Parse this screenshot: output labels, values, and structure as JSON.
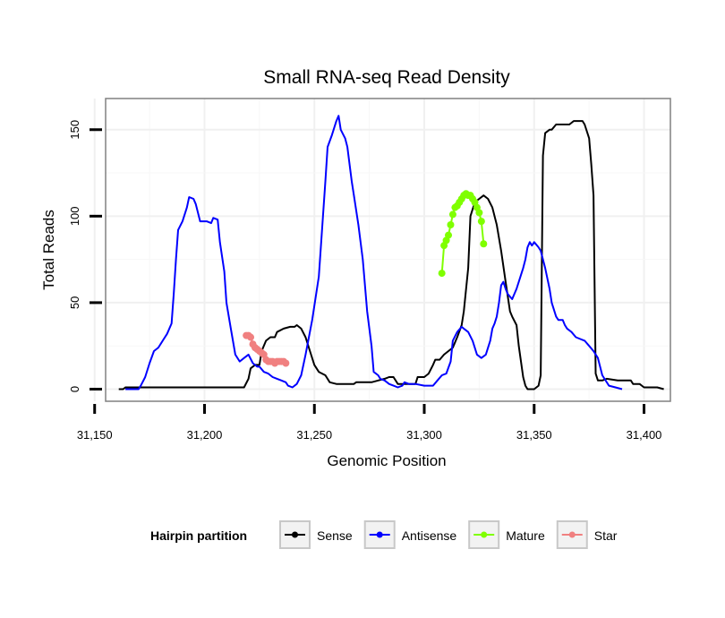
{
  "chart_data": {
    "type": "line",
    "title": "Small RNA-seq Read Density",
    "xlabel": "Genomic Position",
    "ylabel": "Total Reads",
    "xlim": [
      31155,
      31412
    ],
    "ylim": [
      -7,
      168
    ],
    "xticks": [
      31150,
      31200,
      31250,
      31300,
      31350,
      31400
    ],
    "xtick_labels": [
      "31,150",
      "31,200",
      "31,250",
      "31,300",
      "31,350",
      "31,400"
    ],
    "yticks": [
      0,
      50,
      100,
      150
    ],
    "ytick_labels": [
      "0",
      "50",
      "100",
      "150"
    ],
    "grid": true,
    "legend": {
      "title": "Hairpin partition",
      "placement": "bottom",
      "entries": [
        {
          "label": "Sense",
          "color": "#000000"
        },
        {
          "label": "Antisense",
          "color": "#0000ff"
        },
        {
          "label": "Mature",
          "color": "#7fff00"
        },
        {
          "label": "Star",
          "color": "#f08080"
        }
      ]
    },
    "series": [
      {
        "name": "Sense",
        "color": "#000000",
        "style": "line",
        "points": [
          [
            31161,
            0
          ],
          [
            31163,
            0
          ],
          [
            31164,
            1
          ],
          [
            31218,
            1
          ],
          [
            31220,
            6
          ],
          [
            31221,
            12
          ],
          [
            31223,
            14
          ],
          [
            31225,
            14
          ],
          [
            31226,
            22
          ],
          [
            31228,
            28
          ],
          [
            31230,
            30
          ],
          [
            31232,
            30
          ],
          [
            31233,
            33
          ],
          [
            31236,
            35
          ],
          [
            31239,
            36
          ],
          [
            31241,
            36
          ],
          [
            31242,
            37
          ],
          [
            31244,
            35
          ],
          [
            31246,
            30
          ],
          [
            31248,
            22
          ],
          [
            31250,
            14
          ],
          [
            31252,
            10
          ],
          [
            31255,
            8
          ],
          [
            31257,
            4
          ],
          [
            31260,
            3
          ],
          [
            31264,
            3
          ],
          [
            31268,
            3
          ],
          [
            31269,
            4
          ],
          [
            31272,
            4
          ],
          [
            31276,
            4
          ],
          [
            31279,
            5
          ],
          [
            31282,
            6
          ],
          [
            31284,
            7
          ],
          [
            31286,
            7
          ],
          [
            31288,
            3
          ],
          [
            31296,
            3
          ],
          [
            31297,
            7
          ],
          [
            31300,
            7
          ],
          [
            31302,
            9
          ],
          [
            31304,
            14
          ],
          [
            31305,
            17
          ],
          [
            31307,
            17
          ],
          [
            31309,
            20
          ],
          [
            31311,
            22
          ],
          [
            31313,
            24
          ],
          [
            31315,
            30
          ],
          [
            31317,
            37
          ],
          [
            31318,
            45
          ],
          [
            31320,
            70
          ],
          [
            31321,
            100
          ],
          [
            31323,
            108
          ],
          [
            31325,
            110
          ],
          [
            31327,
            112
          ],
          [
            31329,
            110
          ],
          [
            31331,
            105
          ],
          [
            31333,
            95
          ],
          [
            31335,
            80
          ],
          [
            31337,
            62
          ],
          [
            31339,
            45
          ],
          [
            31340,
            42
          ],
          [
            31342,
            37
          ],
          [
            31343,
            25
          ],
          [
            31345,
            7
          ],
          [
            31346,
            2
          ],
          [
            31347,
            0
          ],
          [
            31350,
            0
          ],
          [
            31352,
            2
          ],
          [
            31353,
            8
          ],
          [
            31354,
            135
          ],
          [
            31355,
            148
          ],
          [
            31357,
            150
          ],
          [
            31358,
            150
          ],
          [
            31360,
            153
          ],
          [
            31366,
            153
          ],
          [
            31368,
            155
          ],
          [
            31372,
            155
          ],
          [
            31373,
            153
          ],
          [
            31375,
            145
          ],
          [
            31376,
            130
          ],
          [
            31377,
            112
          ],
          [
            31378,
            9
          ],
          [
            31379,
            5
          ],
          [
            31381,
            5
          ],
          [
            31383,
            6
          ],
          [
            31388,
            5
          ],
          [
            31394,
            5
          ],
          [
            31395,
            3
          ],
          [
            31398,
            3
          ],
          [
            31400,
            1
          ],
          [
            31406,
            1
          ],
          [
            31409,
            0
          ]
        ]
      },
      {
        "name": "Antisense",
        "color": "#0000ff",
        "style": "line",
        "points": [
          [
            31164,
            0
          ],
          [
            31170,
            0
          ],
          [
            31171,
            2
          ],
          [
            31173,
            7
          ],
          [
            31175,
            15
          ],
          [
            31177,
            22
          ],
          [
            31179,
            24
          ],
          [
            31181,
            28
          ],
          [
            31183,
            32
          ],
          [
            31185,
            38
          ],
          [
            31186,
            55
          ],
          [
            31187,
            75
          ],
          [
            31188,
            92
          ],
          [
            31190,
            97
          ],
          [
            31192,
            105
          ],
          [
            31193,
            111
          ],
          [
            31195,
            110
          ],
          [
            31196,
            107
          ],
          [
            31198,
            97
          ],
          [
            31200,
            97
          ],
          [
            31201,
            97
          ],
          [
            31203,
            96
          ],
          [
            31204,
            99
          ],
          [
            31206,
            98
          ],
          [
            31207,
            85
          ],
          [
            31209,
            68
          ],
          [
            31210,
            50
          ],
          [
            31212,
            35
          ],
          [
            31214,
            20
          ],
          [
            31216,
            16
          ],
          [
            31218,
            18
          ],
          [
            31220,
            20
          ],
          [
            31222,
            15
          ],
          [
            31224,
            13
          ],
          [
            31225,
            13
          ],
          [
            31227,
            10
          ],
          [
            31229,
            9
          ],
          [
            31231,
            7
          ],
          [
            31233,
            6
          ],
          [
            31235,
            5
          ],
          [
            31237,
            4
          ],
          [
            31238,
            2
          ],
          [
            31240,
            1
          ],
          [
            31242,
            3
          ],
          [
            31244,
            8
          ],
          [
            31246,
            20
          ],
          [
            31249,
            40
          ],
          [
            31252,
            65
          ],
          [
            31255,
            120
          ],
          [
            31256,
            140
          ],
          [
            31258,
            147
          ],
          [
            31260,
            155
          ],
          [
            31261,
            158
          ],
          [
            31262,
            150
          ],
          [
            31264,
            145
          ],
          [
            31265,
            140
          ],
          [
            31267,
            120
          ],
          [
            31268,
            112
          ],
          [
            31270,
            95
          ],
          [
            31272,
            75
          ],
          [
            31274,
            45
          ],
          [
            31276,
            25
          ],
          [
            31277,
            10
          ],
          [
            31279,
            8
          ],
          [
            31280,
            6
          ],
          [
            31282,
            5
          ],
          [
            31284,
            3
          ],
          [
            31286,
            2
          ],
          [
            31288,
            1
          ],
          [
            31290,
            2
          ],
          [
            31291,
            4
          ],
          [
            31293,
            3
          ],
          [
            31296,
            3
          ],
          [
            31300,
            2
          ],
          [
            31304,
            2
          ],
          [
            31306,
            5
          ],
          [
            31308,
            8
          ],
          [
            31310,
            9
          ],
          [
            31312,
            16
          ],
          [
            31313,
            28
          ],
          [
            31315,
            33
          ],
          [
            31317,
            36
          ],
          [
            31318,
            35
          ],
          [
            31320,
            33
          ],
          [
            31322,
            28
          ],
          [
            31324,
            20
          ],
          [
            31326,
            18
          ],
          [
            31328,
            20
          ],
          [
            31330,
            28
          ],
          [
            31331,
            35
          ],
          [
            31332,
            38
          ],
          [
            31333,
            42
          ],
          [
            31334,
            50
          ],
          [
            31335,
            60
          ],
          [
            31336,
            62
          ],
          [
            31337,
            58
          ],
          [
            31338,
            55
          ],
          [
            31340,
            52
          ],
          [
            31342,
            58
          ],
          [
            31343,
            62
          ],
          [
            31345,
            70
          ],
          [
            31346,
            75
          ],
          [
            31347,
            82
          ],
          [
            31348,
            85
          ],
          [
            31349,
            83
          ],
          [
            31350,
            85
          ],
          [
            31352,
            82
          ],
          [
            31353,
            80
          ],
          [
            31355,
            70
          ],
          [
            31357,
            58
          ],
          [
            31358,
            50
          ],
          [
            31360,
            42
          ],
          [
            31361,
            40
          ],
          [
            31363,
            40
          ],
          [
            31364,
            37
          ],
          [
            31365,
            35
          ],
          [
            31367,
            33
          ],
          [
            31369,
            30
          ],
          [
            31371,
            29
          ],
          [
            31373,
            28
          ],
          [
            31375,
            25
          ],
          [
            31377,
            22
          ],
          [
            31379,
            18
          ],
          [
            31381,
            8
          ],
          [
            31384,
            2
          ],
          [
            31387,
            1
          ],
          [
            31390,
            0
          ]
        ]
      },
      {
        "name": "Mature",
        "color": "#7fff00",
        "style": "points",
        "points": [
          [
            31308,
            67
          ],
          [
            31309,
            83
          ],
          [
            31310,
            86
          ],
          [
            31311,
            89
          ],
          [
            31312,
            95
          ],
          [
            31313,
            101
          ],
          [
            31314,
            105
          ],
          [
            31315,
            106
          ],
          [
            31316,
            108
          ],
          [
            31317,
            110
          ],
          [
            31318,
            112
          ],
          [
            31319,
            113
          ],
          [
            31320,
            112
          ],
          [
            31321,
            112
          ],
          [
            31322,
            110
          ],
          [
            31323,
            108
          ],
          [
            31324,
            105
          ],
          [
            31325,
            102
          ],
          [
            31326,
            97
          ],
          [
            31327,
            84
          ]
        ]
      },
      {
        "name": "Star",
        "color": "#f08080",
        "style": "points",
        "points": [
          [
            31219,
            31
          ],
          [
            31220,
            31
          ],
          [
            31221,
            30
          ],
          [
            31222,
            26
          ],
          [
            31223,
            24
          ],
          [
            31224,
            23
          ],
          [
            31225,
            22
          ],
          [
            31226,
            21
          ],
          [
            31227,
            20
          ],
          [
            31228,
            17
          ],
          [
            31229,
            16
          ],
          [
            31230,
            16
          ],
          [
            31231,
            16
          ],
          [
            31232,
            15
          ],
          [
            31233,
            16
          ],
          [
            31234,
            16
          ],
          [
            31235,
            16
          ],
          [
            31236,
            16
          ],
          [
            31237,
            15
          ]
        ]
      }
    ]
  }
}
